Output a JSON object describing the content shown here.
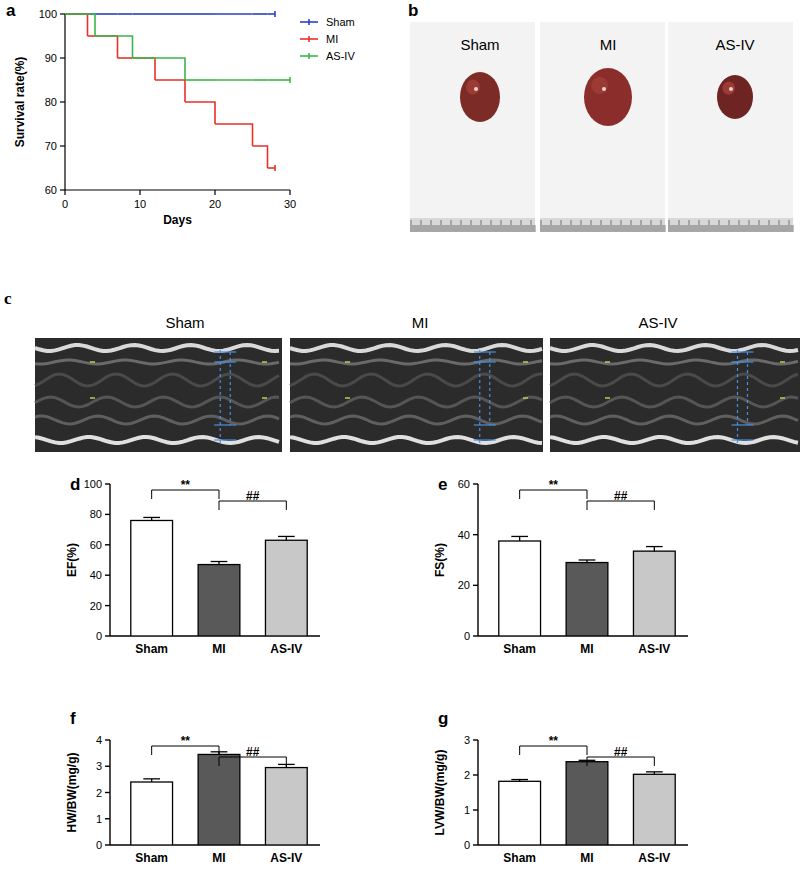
{
  "chart_data": [
    {
      "type": "line",
      "annotations": [
        "a"
      ],
      "x_label": "Days",
      "y_label": "Survival rate(%)",
      "line_style": "step",
      "legend": "right",
      "x": [
        0,
        3,
        4,
        7,
        9,
        12,
        16,
        20,
        25,
        27,
        28,
        30
      ],
      "series": [
        {
          "name": "Sham",
          "color": "#2b3fc9",
          "values": [
            100,
            100,
            100,
            100,
            100,
            100,
            100,
            100,
            100,
            100,
            100,
            null
          ]
        },
        {
          "name": "MI",
          "color": "#e8312a",
          "values": [
            100,
            95,
            95,
            90,
            90,
            85,
            80,
            75,
            70,
            65,
            65,
            null
          ]
        },
        {
          "name": "AS-IV",
          "color": "#3cb54a",
          "values": [
            100,
            100,
            95,
            95,
            90,
            90,
            85,
            85,
            85,
            85,
            85,
            85
          ]
        }
      ],
      "xlim": [
        0,
        30
      ],
      "xticks": [
        0,
        10,
        20,
        30
      ],
      "ylim": [
        60,
        100
      ],
      "yticks": [
        60,
        70,
        80,
        90,
        100
      ]
    },
    {
      "type": "bar",
      "annotations": [
        "d"
      ],
      "y_label": "EF(%)",
      "categories": [
        "Sham",
        "MI",
        "AS-IV"
      ],
      "values": [
        76,
        47,
        63
      ],
      "errors": [
        2,
        2,
        2.5
      ],
      "colors": [
        "#ffffff",
        "#595959",
        "#c8c8c8"
      ],
      "ylim": [
        0,
        100
      ],
      "yticks": [
        0,
        20,
        40,
        60,
        80,
        100
      ],
      "significance": [
        {
          "from": 0,
          "to": 1,
          "label": "**"
        },
        {
          "from": 1,
          "to": 2,
          "label": "##"
        }
      ]
    },
    {
      "type": "bar",
      "annotations": [
        "e"
      ],
      "y_label": "FS(%)",
      "categories": [
        "Sham",
        "MI",
        "AS-IV"
      ],
      "values": [
        37.5,
        29,
        33.5
      ],
      "errors": [
        1.8,
        1,
        1.8
      ],
      "colors": [
        "#ffffff",
        "#595959",
        "#c8c8c8"
      ],
      "ylim": [
        0,
        60
      ],
      "yticks": [
        0,
        20,
        40,
        60
      ],
      "significance": [
        {
          "from": 0,
          "to": 1,
          "label": "**"
        },
        {
          "from": 1,
          "to": 2,
          "label": "##"
        }
      ]
    },
    {
      "type": "bar",
      "annotations": [
        "f"
      ],
      "y_label": "HW/BW(mg/g)",
      "categories": [
        "Sham",
        "MI",
        "AS-IV"
      ],
      "values": [
        2.4,
        3.45,
        2.95
      ],
      "errors": [
        0.12,
        0.1,
        0.12
      ],
      "colors": [
        "#ffffff",
        "#595959",
        "#c8c8c8"
      ],
      "ylim": [
        0,
        4
      ],
      "yticks": [
        0,
        1,
        2,
        3,
        4
      ],
      "significance": [
        {
          "from": 0,
          "to": 1,
          "label": "**"
        },
        {
          "from": 1,
          "to": 2,
          "label": "##"
        }
      ]
    },
    {
      "type": "bar",
      "annotations": [
        "g"
      ],
      "y_label": "LVW/BW(mg/g)",
      "categories": [
        "Sham",
        "MI",
        "AS-IV"
      ],
      "values": [
        1.82,
        2.38,
        2.02
      ],
      "errors": [
        0.05,
        0.04,
        0.07
      ],
      "colors": [
        "#ffffff",
        "#595959",
        "#c8c8c8"
      ],
      "ylim": [
        0,
        3
      ],
      "yticks": [
        0,
        1,
        2,
        3
      ],
      "significance": [
        {
          "from": 0,
          "to": 1,
          "label": "**"
        },
        {
          "from": 1,
          "to": 2,
          "label": "##"
        }
      ]
    }
  ],
  "photos": {
    "panel": "b",
    "captions": [
      "Sham",
      "MI",
      "AS-IV"
    ]
  },
  "echo": {
    "panel": "c",
    "captions": [
      "Sham",
      "MI",
      "AS-IV"
    ]
  }
}
